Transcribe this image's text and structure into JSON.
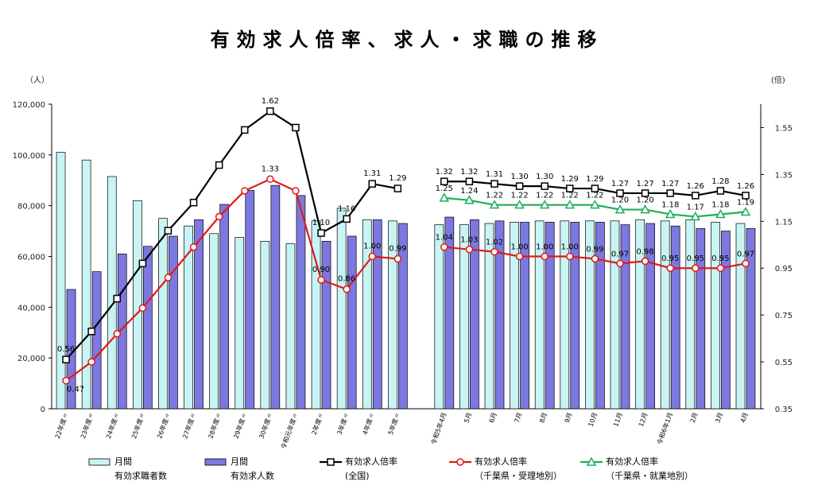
{
  "chart_data": {
    "type": "bar",
    "title": "有効求人倍率、求人・求職の推移",
    "y_left_unit": "（人）",
    "y_right_unit": "(倍)",
    "y_left": {
      "min": 0,
      "max": 120000,
      "ticks": [
        "0",
        "20,000",
        "40,000",
        "60,000",
        "80,000",
        "100,000",
        "120,000"
      ]
    },
    "y_right": {
      "min": 0.35,
      "max": 1.65,
      "ticks": [
        "0.35",
        "0.55",
        "0.75",
        "0.95",
        "1.15",
        "1.35",
        "1.55"
      ]
    },
    "grid": false,
    "annual_categories": [
      "22年度〃",
      "23年度〃",
      "24年度〃",
      "25年度〃",
      "26年度〃",
      "27年度〃",
      "28年度〃",
      "29年度〃",
      "30年度〃",
      "令和元年度〃",
      "2年度〃",
      "3年度〃",
      "4年度〃",
      "5年度〃"
    ],
    "monthly_categories": [
      "令和5年4月",
      "5月",
      "6月",
      "7月",
      "8月",
      "9月",
      "10月",
      "11月",
      "12月",
      "令和6年1月",
      "2月",
      "3月",
      "4月"
    ],
    "series": [
      {
        "name": "月間有効求職者数",
        "legend_line1": "月間",
        "legend_line2": "有効求職者数",
        "kind": "bar",
        "color": "#c8f4f4",
        "annual": [
          101000,
          98000,
          91500,
          82000,
          75000,
          72000,
          69000,
          67500,
          66000,
          65000,
          74000,
          79000,
          74500,
          74000
        ],
        "monthly": [
          72500,
          72500,
          73000,
          73500,
          74000,
          74000,
          74000,
          74000,
          74500,
          74000,
          74500,
          73500,
          73000
        ]
      },
      {
        "name": "月間有効求人数",
        "legend_line1": "月間",
        "legend_line2": "有効求人数",
        "kind": "bar",
        "color": "#7c78e0",
        "annual": [
          47000,
          54000,
          61000,
          64000,
          68000,
          74500,
          80500,
          86000,
          88000,
          84000,
          66000,
          68000,
          74500,
          73000
        ],
        "monthly": [
          75500,
          74500,
          74000,
          73500,
          73500,
          73500,
          73500,
          72500,
          73000,
          72000,
          71000,
          70000,
          71000
        ]
      },
      {
        "name": "有効求人倍率（全国）",
        "legend_line1": "有効求人倍率",
        "legend_line2": "(全国)",
        "kind": "line",
        "color": "#000000",
        "marker": "square",
        "annual": [
          0.56,
          0.68,
          0.82,
          0.97,
          1.11,
          1.23,
          1.39,
          1.54,
          1.62,
          1.55,
          1.1,
          1.16,
          1.31,
          1.29
        ],
        "monthly": [
          1.32,
          1.32,
          1.31,
          1.3,
          1.3,
          1.29,
          1.29,
          1.27,
          1.27,
          1.27,
          1.26,
          1.28,
          1.26
        ]
      },
      {
        "name": "有効求人倍率（千葉県・受理地別）",
        "legend_line1": "有効求人倍率",
        "legend_line2": "（千葉県・受理地別）",
        "kind": "line",
        "color": "#e11818",
        "marker": "circle",
        "annual": [
          0.47,
          0.55,
          0.67,
          0.78,
          0.91,
          1.04,
          1.17,
          1.28,
          1.33,
          1.28,
          0.9,
          0.86,
          1.0,
          0.99
        ],
        "monthly": [
          1.04,
          1.03,
          1.02,
          1.0,
          1.0,
          1.0,
          0.99,
          0.97,
          0.98,
          0.95,
          0.95,
          0.95,
          0.97
        ]
      },
      {
        "name": "有効求人倍率（千葉県・就業地別）",
        "legend_line1": "有効求人倍率",
        "legend_line2": "（千葉県・就業地別）",
        "kind": "line",
        "color": "#1fae5a",
        "marker": "triangle",
        "annual": [],
        "monthly": [
          1.25,
          1.24,
          1.22,
          1.22,
          1.22,
          1.22,
          1.22,
          1.2,
          1.2,
          1.18,
          1.17,
          1.18,
          1.19
        ]
      }
    ],
    "data_labels": {
      "annual_black": {
        "0": "0.56",
        "8": "1.62",
        "10": "1.10",
        "11": "1.16",
        "12": "1.31",
        "13": "1.29"
      },
      "annual_red": {
        "0": "0.47",
        "8": "1.33",
        "10": "0.90",
        "11": "0.86",
        "12": "1.00",
        "13": "0.99"
      },
      "monthly_black": [
        "1.32",
        "1.32",
        "1.31",
        "1.30",
        "1.30",
        "1.29",
        "1.29",
        "1.27",
        "1.27",
        "1.27",
        "1.26",
        "1.28",
        "1.26"
      ],
      "monthly_red": [
        "1.04",
        "1.03",
        "1.02",
        "1.00",
        "1.00",
        "1.00",
        "0.99",
        "0.97",
        "0.98",
        "0.95",
        "0.95",
        "0.95",
        "0.97"
      ],
      "monthly_green": [
        "1.25",
        "1.24",
        "1.22",
        "1.22",
        "1.22",
        "1.22",
        "1.22",
        "1.20",
        "1.20",
        "1.18",
        "1.17",
        "1.18",
        "1.19"
      ]
    }
  }
}
